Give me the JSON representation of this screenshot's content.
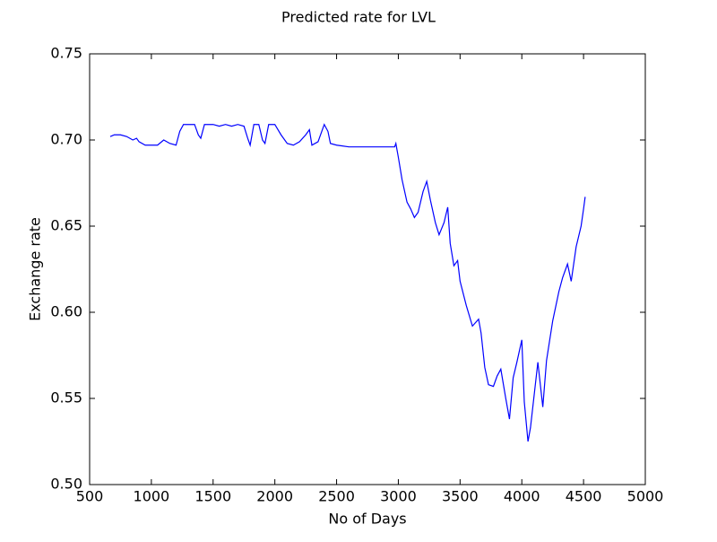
{
  "chart_data": {
    "type": "line",
    "title": "Predicted rate for LVL",
    "x_label": "No of Days",
    "y_label": "Exchange rate",
    "color": "#0000ff",
    "x": [
      667,
      700,
      750,
      800,
      850,
      880,
      900,
      950,
      1000,
      1050,
      1100,
      1150,
      1200,
      1230,
      1260,
      1300,
      1350,
      1380,
      1400,
      1430,
      1500,
      1550,
      1600,
      1650,
      1700,
      1750,
      1780,
      1800,
      1830,
      1870,
      1900,
      1920,
      1950,
      2000,
      2050,
      2100,
      2150,
      2200,
      2250,
      2280,
      2300,
      2350,
      2400,
      2430,
      2450,
      2500,
      2600,
      2700,
      2800,
      2900,
      2970,
      2980,
      3000,
      3030,
      3070,
      3100,
      3130,
      3160,
      3200,
      3230,
      3260,
      3300,
      3330,
      3370,
      3400,
      3420,
      3450,
      3480,
      3500,
      3550,
      3600,
      3650,
      3670,
      3700,
      3730,
      3770,
      3800,
      3830,
      3870,
      3900,
      3930,
      3960,
      4000,
      4020,
      4050,
      4070,
      4100,
      4130,
      4170,
      4200,
      4250,
      4300,
      4330,
      4370,
      4400,
      4440,
      4480,
      4500,
      4513
    ],
    "values": [
      0.702,
      0.703,
      0.703,
      0.702,
      0.7,
      0.701,
      0.699,
      0.697,
      0.697,
      0.697,
      0.7,
      0.698,
      0.697,
      0.705,
      0.709,
      0.709,
      0.709,
      0.703,
      0.701,
      0.709,
      0.709,
      0.708,
      0.709,
      0.708,
      0.709,
      0.708,
      0.701,
      0.697,
      0.709,
      0.709,
      0.7,
      0.698,
      0.709,
      0.709,
      0.703,
      0.698,
      0.697,
      0.699,
      0.703,
      0.706,
      0.697,
      0.699,
      0.709,
      0.705,
      0.698,
      0.697,
      0.696,
      0.696,
      0.696,
      0.696,
      0.696,
      0.698,
      0.69,
      0.677,
      0.664,
      0.66,
      0.655,
      0.658,
      0.67,
      0.676,
      0.665,
      0.652,
      0.645,
      0.652,
      0.661,
      0.64,
      0.627,
      0.63,
      0.618,
      0.604,
      0.592,
      0.596,
      0.588,
      0.568,
      0.558,
      0.557,
      0.563,
      0.567,
      0.55,
      0.538,
      0.562,
      0.571,
      0.584,
      0.548,
      0.525,
      0.533,
      0.552,
      0.571,
      0.545,
      0.572,
      0.595,
      0.612,
      0.62,
      0.628,
      0.618,
      0.638,
      0.65,
      0.66,
      0.667
    ],
    "xlim": [
      500,
      5000
    ],
    "xticks": [
      500,
      1000,
      1500,
      2000,
      2500,
      3000,
      3500,
      4000,
      4500,
      5000
    ],
    "ylim": [
      0.5,
      0.75
    ],
    "yticks": [
      {
        "value": 0.5,
        "label": "0.50"
      },
      0.55,
      {
        "value": 0.6,
        "label": "0.60"
      },
      0.65,
      {
        "value": 0.7,
        "label": "0.70"
      },
      0.75
    ]
  }
}
